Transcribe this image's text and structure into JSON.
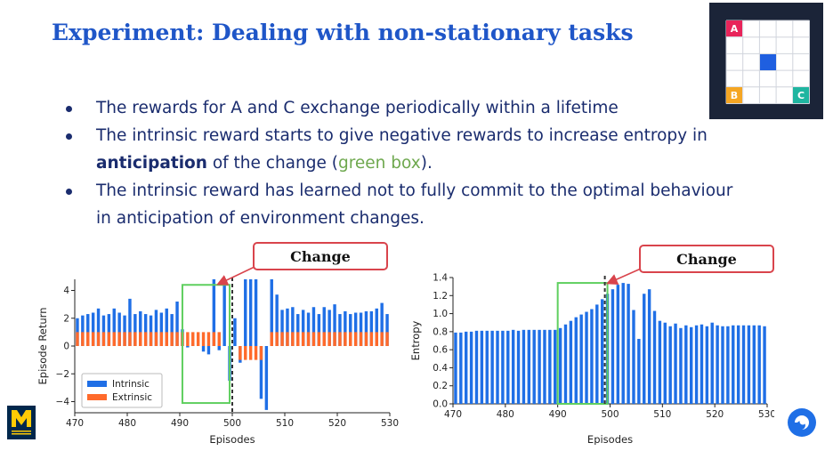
{
  "slide": {
    "title": "Experiment: Dealing with non-stationary tasks",
    "bullets": [
      {
        "text": "The rewards for A and C exchange periodically within a lifetime"
      },
      {
        "text_a": "The intrinsic reward starts to give negative rewards to increase entropy in ",
        "bold": "anticipation",
        "text_b": " of the change (",
        "green": "green box",
        "text_c": ")."
      },
      {
        "text": "The intrinsic reward has learned not to fully commit to the optimal behaviour in anticipation of environment changes."
      }
    ],
    "callout_left": "Change",
    "callout_right": "Change",
    "grid_labels": {
      "a": "A",
      "b": "B",
      "c": "C"
    },
    "colors": {
      "title": "#1f56c8",
      "text": "#1a2c6e",
      "intrinsic": "#1f6fe6",
      "extrinsic": "#ff6a2b",
      "green_box": "#5fcf5f",
      "callout": "#d9444c",
      "grid_a": "#e8245a",
      "grid_b": "#f5a623",
      "grid_c": "#1fb5a0",
      "agent": "#1f5fe0"
    },
    "icons": {
      "left_logo": "university-of-michigan-logo",
      "right_logo": "deepmind-logo"
    }
  },
  "chart_data": [
    {
      "type": "bar",
      "xlabel": "Episodes",
      "ylabel": "Episode Return",
      "xlim": [
        470,
        530
      ],
      "ylim": [
        -4.8,
        4.8
      ],
      "xticks": [
        470,
        480,
        490,
        500,
        510,
        520,
        530
      ],
      "yticks": [
        -4,
        -2,
        0,
        2,
        4
      ],
      "change_episode": 500,
      "highlight_box": {
        "x": [
          490.5,
          499.5
        ],
        "y": [
          -4.1,
          4.4
        ]
      },
      "legend": {
        "position": "lower-left",
        "entries": [
          "Intrinsic",
          "Extrinsic"
        ]
      },
      "series": [
        {
          "name": "Intrinsic",
          "x": [
            470,
            471,
            472,
            473,
            474,
            475,
            476,
            477,
            478,
            479,
            480,
            481,
            482,
            483,
            484,
            485,
            486,
            487,
            488,
            489,
            490,
            491,
            492,
            493,
            494,
            495,
            496,
            497,
            498,
            499,
            500,
            501,
            502,
            503,
            504,
            505,
            506,
            507,
            508,
            509,
            510,
            511,
            512,
            513,
            514,
            515,
            516,
            517,
            518,
            519,
            520,
            521,
            522,
            523,
            524,
            525,
            526,
            527,
            528,
            529
          ],
          "values": [
            2.0,
            2.2,
            2.3,
            2.4,
            2.7,
            2.2,
            2.3,
            2.7,
            2.4,
            2.2,
            3.4,
            2.3,
            2.5,
            2.3,
            2.2,
            2.6,
            2.4,
            2.7,
            2.3,
            3.2,
            1.2,
            -0.1,
            0.2,
            0.0,
            -0.4,
            -0.6,
            4.8,
            -0.3,
            4.6,
            -2.5,
            2.0,
            -1.2,
            4.8,
            4.8,
            4.8,
            -3.8,
            -4.6,
            4.8,
            3.7,
            2.6,
            2.7,
            2.8,
            2.3,
            2.6,
            2.4,
            2.8,
            2.3,
            2.8,
            2.6,
            3.0,
            2.3,
            2.5,
            2.3,
            2.4,
            2.4,
            2.5,
            2.5,
            2.7,
            3.1,
            2.3
          ]
        },
        {
          "name": "Extrinsic",
          "x": [
            470,
            471,
            472,
            473,
            474,
            475,
            476,
            477,
            478,
            479,
            480,
            481,
            482,
            483,
            484,
            485,
            486,
            487,
            488,
            489,
            490,
            491,
            492,
            493,
            494,
            495,
            496,
            497,
            498,
            499,
            500,
            501,
            502,
            503,
            504,
            505,
            506,
            507,
            508,
            509,
            510,
            511,
            512,
            513,
            514,
            515,
            516,
            517,
            518,
            519,
            520,
            521,
            522,
            523,
            524,
            525,
            526,
            527,
            528,
            529
          ],
          "values": [
            1,
            1,
            1,
            1,
            1,
            1,
            1,
            1,
            1,
            1,
            1,
            1,
            1,
            1,
            1,
            1,
            1,
            1,
            1,
            1,
            1,
            1,
            1,
            1,
            1,
            1,
            1,
            1,
            0,
            0,
            0,
            -1,
            -1,
            -1,
            -1,
            -1,
            0,
            1,
            1,
            1,
            1,
            1,
            1,
            1,
            1,
            1,
            1,
            1,
            1,
            1,
            1,
            1,
            1,
            1,
            1,
            1,
            1,
            1,
            1,
            1
          ]
        }
      ]
    },
    {
      "type": "bar",
      "xlabel": "Episodes",
      "ylabel": "Entropy",
      "xlim": [
        470,
        530
      ],
      "ylim": [
        0,
        1.4
      ],
      "xticks": [
        470,
        480,
        490,
        500,
        510,
        520,
        530
      ],
      "yticks": [
        0.0,
        0.2,
        0.4,
        0.6,
        0.8,
        1.0,
        1.2,
        1.4
      ],
      "change_episode": 499,
      "highlight_box": {
        "x": [
          490,
          499.5
        ],
        "y": [
          0.0,
          1.34
        ]
      },
      "series": [
        {
          "name": "Entropy",
          "x": [
            470,
            471,
            472,
            473,
            474,
            475,
            476,
            477,
            478,
            479,
            480,
            481,
            482,
            483,
            484,
            485,
            486,
            487,
            488,
            489,
            490,
            491,
            492,
            493,
            494,
            495,
            496,
            497,
            498,
            499,
            500,
            501,
            502,
            503,
            504,
            505,
            506,
            507,
            508,
            509,
            510,
            511,
            512,
            513,
            514,
            515,
            516,
            517,
            518,
            519,
            520,
            521,
            522,
            523,
            524,
            525,
            526,
            527,
            528,
            529
          ],
          "values": [
            0.79,
            0.79,
            0.8,
            0.8,
            0.81,
            0.81,
            0.81,
            0.81,
            0.81,
            0.81,
            0.81,
            0.82,
            0.81,
            0.82,
            0.82,
            0.82,
            0.82,
            0.82,
            0.82,
            0.82,
            0.84,
            0.88,
            0.92,
            0.96,
            0.99,
            1.02,
            1.05,
            1.1,
            1.16,
            1.22,
            1.27,
            1.32,
            1.34,
            1.33,
            1.04,
            0.72,
            1.22,
            1.27,
            1.03,
            0.92,
            0.9,
            0.86,
            0.89,
            0.84,
            0.87,
            0.85,
            0.87,
            0.88,
            0.86,
            0.9,
            0.87,
            0.86,
            0.86,
            0.87,
            0.87,
            0.87,
            0.87,
            0.87,
            0.87,
            0.86
          ]
        }
      ]
    }
  ]
}
